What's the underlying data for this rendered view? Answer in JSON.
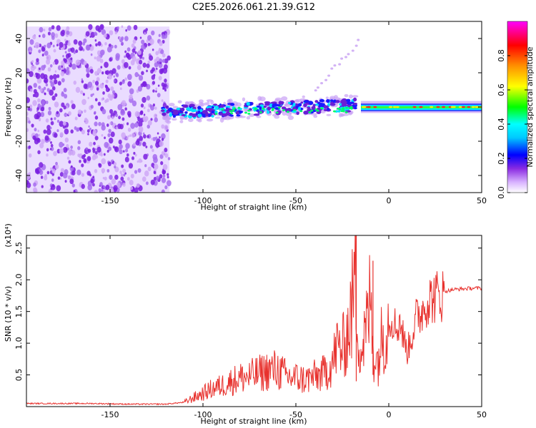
{
  "chart_data": [
    {
      "type": "heatmap",
      "title": "C2E5.2026.061.21.39.G12",
      "xlabel": "Height of straight line (km)",
      "ylabel": "Frequency (Hz)",
      "xlim": [
        -195,
        50
      ],
      "ylim": [
        -50,
        50
      ],
      "x_ticks": [
        -150,
        -100,
        -50,
        0,
        50
      ],
      "y_ticks": [
        -40,
        -20,
        0,
        20,
        40
      ],
      "x_tick_labels": [
        "-150",
        "-100",
        "-50",
        "0",
        "50"
      ],
      "y_tick_labels": [
        "-40",
        "-20",
        "0",
        "20",
        "40"
      ],
      "colorbar": {
        "label": "Normalized spectral amplitude",
        "range": [
          0,
          1
        ],
        "ticks": [
          0.0,
          0.2,
          0.4,
          0.6,
          0.8
        ],
        "tick_labels": [
          "0.0",
          "0.2",
          "0.4",
          "0.6",
          "0.8"
        ],
        "colors": [
          "#ffffff",
          "#8a2be2",
          "#0000ff",
          "#00ffff",
          "#00ff00",
          "#ffff00",
          "#ff8000",
          "#ff0000",
          "#ff00ff"
        ]
      },
      "regions": [
        {
          "kind": "noise",
          "x_range": [
            -195,
            -118
          ],
          "y_range": [
            -50,
            47
          ],
          "amplitude": 0.1
        },
        {
          "kind": "band",
          "x_range": [
            -122,
            -18
          ],
          "center_hz": 0,
          "half_width_hz": 4,
          "amplitude": 0.3
        },
        {
          "kind": "band",
          "x_range": [
            -15,
            50
          ],
          "center_hz": 0,
          "half_width_hz": 2,
          "amplitude": 0.9
        }
      ]
    },
    {
      "type": "line",
      "xlabel": "Height of straight line (km)",
      "ylabel": "SNR (10 * v/v)",
      "y_multiplier": "(x10⁴)",
      "xlim": [
        -195,
        50
      ],
      "ylim": [
        0,
        2.7
      ],
      "x_ticks": [
        -150,
        -100,
        -50,
        0,
        50
      ],
      "y_ticks": [
        0.5,
        1.0,
        1.5,
        2.0,
        2.5
      ],
      "x_tick_labels": [
        "-150",
        "-100",
        "-50",
        "0",
        "50"
      ],
      "y_tick_labels": [
        "0.5",
        "1.0",
        "1.5",
        "2.0",
        "2.5"
      ],
      "color": "#e8322e",
      "series": [
        {
          "x": [
            -195,
            -180,
            -160,
            -140,
            -120,
            -110,
            -105,
            -100,
            -95,
            -90,
            -85,
            -80,
            -75,
            -70,
            -65,
            -60,
            -55,
            -50,
            -45,
            -40,
            -35,
            -30,
            -28,
            -25,
            -22,
            -20,
            -18,
            -17,
            -15,
            -12,
            -10,
            -8,
            -6,
            -4,
            -2,
            0,
            2,
            4,
            6,
            8,
            10,
            12,
            15,
            18,
            20,
            25,
            30,
            35,
            40,
            45,
            50
          ],
          "y": [
            0.05,
            0.05,
            0.05,
            0.04,
            0.04,
            0.07,
            0.15,
            0.22,
            0.3,
            0.35,
            0.42,
            0.48,
            0.5,
            0.55,
            0.6,
            0.62,
            0.5,
            0.48,
            0.45,
            0.5,
            0.55,
            0.75,
            1.0,
            0.95,
            1.25,
            1.6,
            2.2,
            1.55,
            0.9,
            1.3,
            1.8,
            0.9,
            0.75,
            1.1,
            1.3,
            1.4,
            1.45,
            1.25,
            1.4,
            1.1,
            0.9,
            1.1,
            1.45,
            1.55,
            1.7,
            1.78,
            1.82,
            1.85,
            1.86,
            1.87,
            1.87
          ]
        }
      ]
    }
  ]
}
